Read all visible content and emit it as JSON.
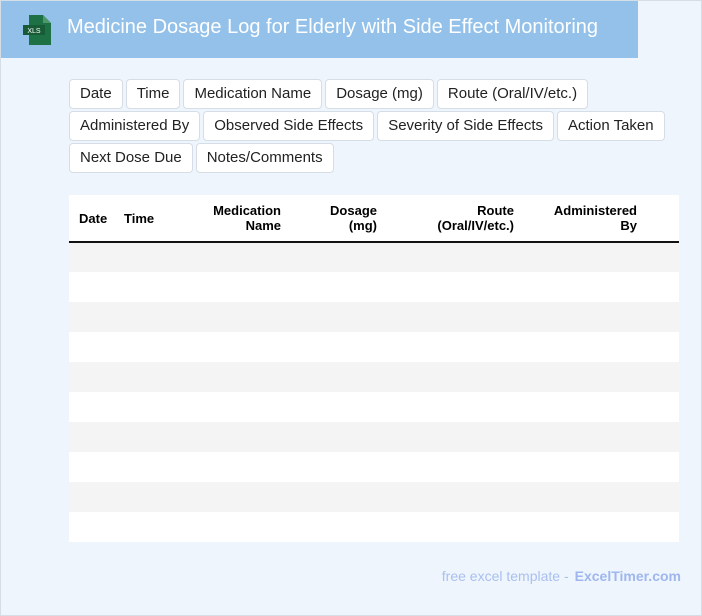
{
  "header": {
    "title": "Medicine Dosage Log for Elderly with Side Effect Monitoring",
    "icon": "xls-file-icon",
    "icon_label": "XLS",
    "colors": {
      "bar": "#93c1ea",
      "icon": "#1e7145"
    }
  },
  "tags": [
    "Date",
    "Time",
    "Medication Name",
    "Dosage (mg)",
    "Route (Oral/IV/etc.)",
    "Administered By",
    "Observed Side Effects",
    "Severity of Side Effects",
    "Action Taken",
    "Next Dose Due",
    "Notes/Comments"
  ],
  "table": {
    "columns": [
      {
        "line1": "Date",
        "line2": ""
      },
      {
        "line1": "Time",
        "line2": ""
      },
      {
        "line1": "Medication",
        "line2": "Name"
      },
      {
        "line1": "Dosage",
        "line2": "(mg)"
      },
      {
        "line1": "Route",
        "line2": "(Oral/IV/etc.)"
      },
      {
        "line1": "Administered",
        "line2": "By"
      },
      {
        "line1": "",
        "line2": ""
      }
    ],
    "rows": [
      [],
      [],
      [],
      [],
      [],
      [],
      [],
      [],
      [],
      []
    ]
  },
  "footer": {
    "text": "free excel template -",
    "brand": "ExcelTimer.com"
  }
}
